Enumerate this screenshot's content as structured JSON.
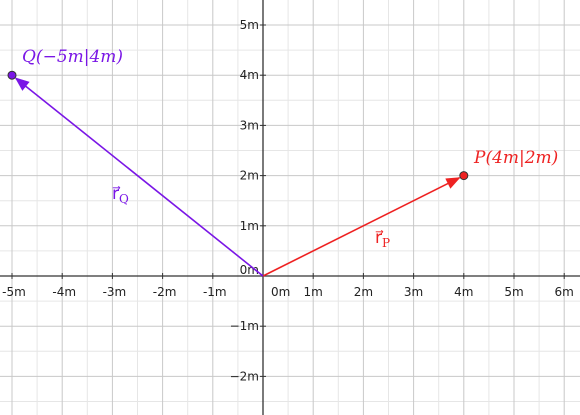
{
  "axes": {
    "x_tick_labels": [
      "-5m",
      "-4m",
      "-3m",
      "-2m",
      "-1m",
      "0m",
      "1m",
      "2m",
      "3m",
      "4m",
      "5m",
      "6m"
    ],
    "y_tick_labels": [
      "5m",
      "4m",
      "3m",
      "2m",
      "1m",
      "0m",
      "−1m",
      "−2m"
    ],
    "origin_label": "0m",
    "x_range": [
      -5.3,
      6.3
    ],
    "y_range": [
      -2.7,
      5.2
    ]
  },
  "points": [
    {
      "id": "P",
      "x": 4,
      "y": 2,
      "label": "P(4m|2m)",
      "color": "#ee2222"
    },
    {
      "id": "Q",
      "x": -5,
      "y": 4,
      "label": "Q(−5m|4m)",
      "color": "#7a16e6"
    }
  ],
  "vectors": [
    {
      "id": "rP",
      "to": "P",
      "label": "r⃗P",
      "color": "#ee2222"
    },
    {
      "id": "rQ",
      "to": "Q",
      "label": "r⃗Q",
      "color": "#7a16e6"
    }
  ],
  "colors": {
    "grid_major": "#c8c8c8",
    "grid_minor": "#e6e6e6",
    "axis": "#333333"
  }
}
